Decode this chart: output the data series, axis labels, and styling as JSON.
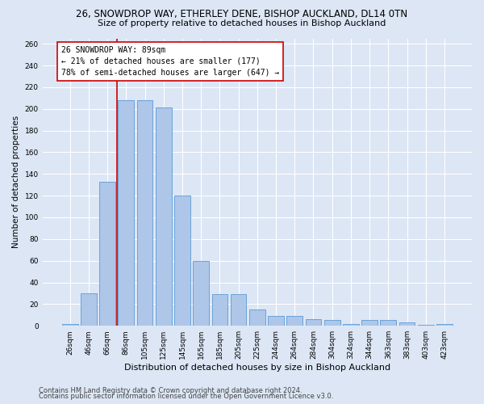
{
  "title1": "26, SNOWDROP WAY, ETHERLEY DENE, BISHOP AUCKLAND, DL14 0TN",
  "title2": "Size of property relative to detached houses in Bishop Auckland",
  "xlabel": "Distribution of detached houses by size in Bishop Auckland",
  "ylabel": "Number of detached properties",
  "categories": [
    "26sqm",
    "46sqm",
    "66sqm",
    "86sqm",
    "105sqm",
    "125sqm",
    "145sqm",
    "165sqm",
    "185sqm",
    "205sqm",
    "225sqm",
    "244sqm",
    "264sqm",
    "284sqm",
    "304sqm",
    "324sqm",
    "344sqm",
    "363sqm",
    "383sqm",
    "403sqm",
    "423sqm"
  ],
  "values": [
    2,
    30,
    133,
    208,
    208,
    201,
    120,
    60,
    29,
    29,
    15,
    9,
    9,
    6,
    5,
    2,
    5,
    5,
    3,
    1,
    2
  ],
  "bar_color": "#aec6e8",
  "bar_edge_color": "#5b9bd5",
  "background_color": "#dce6f5",
  "grid_color": "#ffffff",
  "annotation_text": "26 SNOWDROP WAY: 89sqm\n← 21% of detached houses are smaller (177)\n78% of semi-detached houses are larger (647) →",
  "annotation_box_color": "#ffffff",
  "annotation_box_edge": "#cc0000",
  "vline_x": 2.5,
  "vline_color": "#cc0000",
  "ylim": [
    0,
    265
  ],
  "yticks": [
    0,
    20,
    40,
    60,
    80,
    100,
    120,
    140,
    160,
    180,
    200,
    220,
    240,
    260
  ],
  "footer1": "Contains HM Land Registry data © Crown copyright and database right 2024.",
  "footer2": "Contains public sector information licensed under the Open Government Licence v3.0.",
  "title1_fontsize": 8.5,
  "title2_fontsize": 8.0,
  "xlabel_fontsize": 8.0,
  "ylabel_fontsize": 7.5,
  "tick_fontsize": 6.5,
  "annotation_fontsize": 7.0,
  "footer_fontsize": 6.0
}
